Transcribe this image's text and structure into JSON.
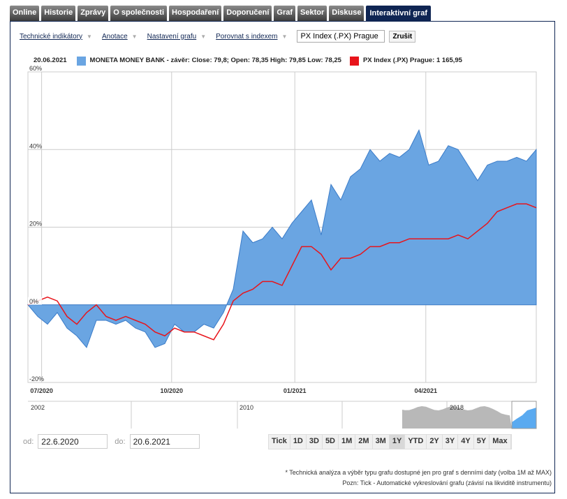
{
  "tabs": [
    "Online",
    "Historie",
    "Zprávy",
    "O společnosti",
    "Hospodaření",
    "Doporučení",
    "Graf",
    "Sektor",
    "Diskuse",
    "Interaktivní graf"
  ],
  "active_tab": "Interaktivní graf",
  "toolbar": {
    "indicators": "Technické indikátory",
    "annotations": "Anotace",
    "settings": "Nastavení grafu",
    "compare": "Porovnat s indexem",
    "compare_value": "PX Index (.PX) Prague",
    "cancel": "Zrušit",
    "arrow": "▼"
  },
  "legend": {
    "date": "20.06.2021",
    "series1": "MONETA MONEY BANK - závěr: Close: 79,8; Open: 78,35 High: 79,85 Low: 78,25",
    "series2": "PX Index (.PX) Prague: 1 165,95"
  },
  "colors": {
    "moneta": "#6aa5e2",
    "px": "#e8141b",
    "tab_active": "#0f2553"
  },
  "chart_data": {
    "type": "area",
    "x_unit": "weeks since 22.6.2020",
    "ylabel": "%",
    "ylim": [
      -20,
      60
    ],
    "yticks": [
      "60%",
      "40%",
      "20%",
      "0%",
      "-20%"
    ],
    "xticks": [
      {
        "label": "07/2020",
        "week": 1.4
      },
      {
        "label": "10/2020",
        "week": 14.7
      },
      {
        "label": "01/2021",
        "week": 27.3
      },
      {
        "label": "04/2021",
        "week": 40.7
      }
    ],
    "series": [
      {
        "name": "MONETA MONEY BANK",
        "values": [
          0,
          -3,
          -5,
          -2,
          -6,
          -8,
          -11,
          -4,
          -4,
          -5,
          -4,
          -6,
          -7,
          -11,
          -10,
          -5,
          -7,
          -7,
          -5,
          -6,
          -2,
          4,
          19,
          16,
          17,
          20,
          17,
          21,
          24,
          27,
          18,
          31,
          27,
          33,
          35,
          40,
          37,
          39,
          38,
          40,
          45,
          36,
          37,
          41,
          40,
          36,
          32,
          36,
          37,
          37,
          38,
          37,
          40
        ]
      },
      {
        "name": "PX Index (.PX) Prague",
        "values": [
          0,
          1,
          2,
          1,
          -3,
          -5,
          -2,
          0,
          -3,
          -4,
          -3,
          -4,
          -5,
          -7,
          -8,
          -6,
          -7,
          -7,
          -8,
          -9,
          -5,
          1,
          3,
          4,
          6,
          6,
          5,
          10,
          15,
          15,
          13,
          9,
          12,
          12,
          13,
          15,
          15,
          16,
          16,
          17,
          17,
          17,
          17,
          17,
          18,
          17,
          19,
          21,
          24,
          25,
          26,
          26,
          25
        ]
      }
    ]
  },
  "navigator": {
    "labels": [
      "2002",
      "2010",
      "2018"
    ]
  },
  "dates": {
    "from_label": "od:",
    "from": "22.6.2020",
    "to_label": "do:",
    "to": "20.6.2021"
  },
  "ranges": [
    "Tick",
    "1D",
    "3D",
    "5D",
    "1M",
    "2M",
    "3M",
    "1Y",
    "YTD",
    "2Y",
    "3Y",
    "4Y",
    "5Y",
    "Max"
  ],
  "selected_range": "1Y",
  "notes": [
    "* Technická analýza a výběr typu grafu dostupné jen pro graf s denními daty (volba 1M až MAX)",
    "Pozn: Tick - Automatické vykreslování grafu (závisí na likviditě instrumentu)"
  ]
}
